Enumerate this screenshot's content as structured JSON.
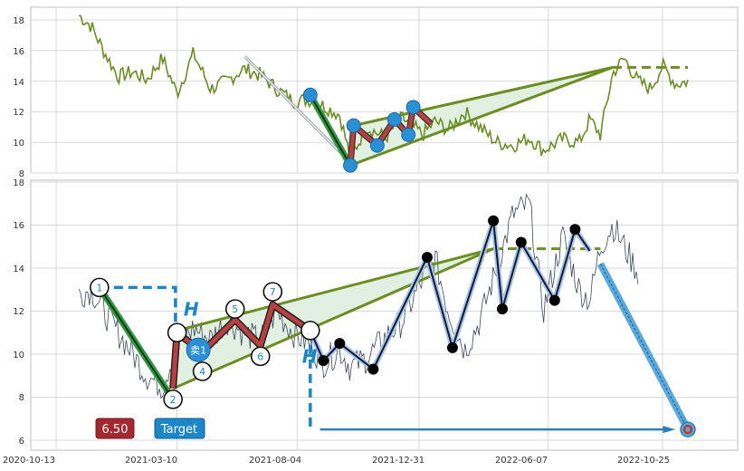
{
  "chart_data": [
    {
      "type": "line",
      "panel": "top",
      "ylim": [
        8,
        19
      ],
      "y_ticks": [
        "8",
        "10",
        "12",
        "14",
        "16",
        "18"
      ],
      "grid": true,
      "price_series": {
        "color": "#6b8e23",
        "x": [
          "2020-11-10",
          "2020-11-25",
          "2020-12-10",
          "2020-12-28",
          "2021-01-15",
          "2021-02-01",
          "2021-02-20",
          "2021-03-10",
          "2021-03-30",
          "2021-04-20",
          "2021-05-10",
          "2021-05-30",
          "2021-06-20",
          "2021-07-10",
          "2021-07-30",
          "2021-08-20",
          "2021-09-05",
          "2021-09-25",
          "2021-10-08",
          "2021-10-28",
          "2021-11-20",
          "2021-12-10",
          "2022-01-05",
          "2022-01-20",
          "2022-02-05",
          "2022-02-25",
          "2022-03-15",
          "2022-04-05",
          "2022-04-25",
          "2022-05-15",
          "2022-06-01",
          "2022-06-25",
          "2022-07-15",
          "2022-07-28",
          "2022-08-10",
          "2022-08-25",
          "2022-09-08",
          "2022-09-25",
          "2022-10-10",
          "2022-10-25",
          "2022-11-10",
          "2022-11-25"
        ],
        "y": [
          18.3,
          17.6,
          16.0,
          14.3,
          14.6,
          14.1,
          15.5,
          13.2,
          15.8,
          13.5,
          14.0,
          14.8,
          14.4,
          13.5,
          12.7,
          12.8,
          12.4,
          11.8,
          9.0,
          11.0,
          10.3,
          11.6,
          10.5,
          11.4,
          10.8,
          12.0,
          11.0,
          10.0,
          9.8,
          10.3,
          9.5,
          10.2,
          10.0,
          11.5,
          10.5,
          14.5,
          15.5,
          14.0,
          13.5,
          15.0,
          13.8,
          14.0
        ]
      },
      "sell_trend": {
        "x": [
          "2021-08-20",
          "2021-10-08"
        ],
        "y": [
          13.1,
          8.5
        ]
      },
      "arrow": {
        "x": [
          "2021-06-01",
          "2021-10-06"
        ],
        "y": [
          15.6,
          8.8
        ]
      },
      "pivots": {
        "x": [
          "2021-08-20",
          "2021-10-08",
          "2021-10-12",
          "2021-11-10",
          "2021-12-01",
          "2021-12-18",
          "2021-12-24"
        ],
        "y": [
          13.1,
          8.5,
          11.1,
          9.8,
          11.5,
          10.5,
          12.3
        ]
      },
      "pattern_path": {
        "x": [
          "2021-10-08",
          "2021-10-12",
          "2021-11-10",
          "2021-12-01",
          "2021-12-18",
          "2021-12-24",
          "2022-01-15"
        ],
        "y": [
          8.5,
          11.1,
          9.8,
          11.5,
          10.5,
          12.3,
          11.2
        ]
      },
      "wedge": {
        "apex": {
          "x": "2022-08-25",
          "y": 14.9
        },
        "upper_start": {
          "x": "2021-10-12",
          "y": 11.1
        },
        "lower_start": {
          "x": "2021-10-08",
          "y": 8.5
        }
      },
      "level": {
        "y": 14.9,
        "x": [
          "2022-08-25",
          "2022-11-25"
        ]
      }
    },
    {
      "type": "line",
      "panel": "bottom",
      "ylim": [
        5.5,
        18.1
      ],
      "y_ticks": [
        "6",
        "8",
        "10",
        "12",
        "14",
        "16",
        "18"
      ],
      "x_tick_labels": [
        "2020-10-13",
        "2021-03-10",
        "2021-08-04",
        "2021-12-31",
        "2022-06-07",
        "2022-10-25"
      ],
      "grid": true,
      "price_series": {
        "color": "#3b4660",
        "x": [
          "2020-11-10",
          "2020-11-25",
          "2020-12-10",
          "2020-12-28",
          "2021-01-15",
          "2021-02-01",
          "2021-02-20",
          "2021-03-10",
          "2021-03-30",
          "2021-04-20",
          "2021-05-10",
          "2021-05-30",
          "2021-06-20",
          "2021-07-10",
          "2021-07-30",
          "2021-08-20",
          "2021-09-05",
          "2021-09-25",
          "2021-10-08",
          "2021-10-28",
          "2021-11-20",
          "2021-12-10",
          "2022-01-05",
          "2022-01-20",
          "2022-02-05",
          "2022-02-25",
          "2022-03-15",
          "2022-04-05",
          "2022-04-25",
          "2022-05-15",
          "2022-06-01",
          "2022-06-25",
          "2022-07-15",
          "2022-07-28",
          "2022-08-10",
          "2022-08-25",
          "2022-09-08",
          "2022-09-25"
        ],
        "y": [
          12.8,
          13.0,
          12.0,
          11.0,
          10.0,
          9.0,
          8.5,
          10.5,
          11.2,
          10.7,
          11.6,
          11.0,
          10.6,
          12.0,
          11.0,
          10.4,
          9.6,
          10.2,
          9.4,
          9.8,
          10.8,
          11.5,
          13.5,
          14.4,
          12.0,
          10.2,
          11.5,
          14.0,
          16.5,
          17.0,
          12.0,
          15.5,
          13.0,
          12.5,
          15.0,
          16.0,
          15.0,
          13.8
        ]
      },
      "trend_left": {
        "x": [
          "2020-12-05",
          "2021-03-05"
        ],
        "y": [
          13.1,
          7.9
        ]
      },
      "pattern_points": [
        {
          "label": "1",
          "x": "2020-12-05",
          "y": 13.1,
          "circled": true
        },
        {
          "label": "2",
          "x": "2021-03-05",
          "y": 7.9,
          "circled": true
        },
        {
          "label": "",
          "x": "2021-03-10",
          "y": 11.0,
          "circled": true
        },
        {
          "label": "4",
          "x": "2021-04-10",
          "y": 9.2,
          "circled": true
        },
        {
          "label": "5",
          "x": "2021-05-20",
          "y": 12.1,
          "circled": true
        },
        {
          "label": "6",
          "x": "2021-06-20",
          "y": 9.9,
          "circled": true
        },
        {
          "label": "7",
          "x": "2021-07-05",
          "y": 12.9,
          "circled": true
        },
        {
          "label": "",
          "x": "2021-08-20",
          "y": 11.1,
          "circled": true
        }
      ],
      "pattern_path": {
        "x": [
          "2021-03-05",
          "2021-03-10",
          "2021-04-10",
          "2021-05-20",
          "2021-06-20",
          "2021-07-05",
          "2021-08-20"
        ],
        "y": [
          8.4,
          11.0,
          10.1,
          11.6,
          10.4,
          12.3,
          11.1
        ]
      },
      "swing_points": {
        "x": [
          "2021-08-20",
          "2021-09-05",
          "2021-09-25",
          "2021-11-05",
          "2022-01-10",
          "2022-02-10",
          "2022-04-01",
          "2022-04-12",
          "2022-05-05",
          "2022-06-15",
          "2022-07-10"
        ],
        "y": [
          11.1,
          9.7,
          10.5,
          9.3,
          14.5,
          10.3,
          16.2,
          12.1,
          15.2,
          12.5,
          15.8
        ]
      },
      "swing_path": {
        "x": [
          "2021-08-20",
          "2021-09-05",
          "2021-09-25",
          "2021-11-05",
          "2022-01-10",
          "2022-02-10",
          "2022-04-01",
          "2022-04-12",
          "2022-05-05",
          "2022-06-15",
          "2022-07-10",
          "2022-07-28"
        ],
        "y": [
          11.1,
          9.7,
          10.5,
          9.3,
          14.5,
          10.3,
          16.2,
          12.1,
          15.2,
          12.5,
          15.8,
          14.8
        ]
      },
      "wedge": {
        "apex": {
          "x": "2022-04-01",
          "y": 14.9
        },
        "upper_start": {
          "x": "2021-03-10",
          "y": 11.1
        },
        "lower_start": {
          "x": "2021-03-05",
          "y": 8.4
        }
      },
      "level": {
        "y": 14.9,
        "x": [
          "2022-04-01",
          "2022-08-10"
        ]
      },
      "bracket": {
        "x": [
          "2020-12-05",
          "2021-03-08"
        ],
        "y": 13.1
      },
      "vline": {
        "x": "2021-08-20",
        "y": [
          11.1,
          6.5
        ]
      },
      "target_arrow": {
        "x": [
          "2021-09-01",
          "2022-11-10"
        ],
        "y": 6.5
      },
      "drop_arrow": {
        "x": [
          "2022-08-10",
          "2022-11-25"
        ],
        "y": [
          14.2,
          6.5
        ]
      },
      "target_marker": {
        "x": "2022-11-25",
        "y": 6.5
      },
      "badges": {
        "value": "6.50",
        "target": "Target"
      },
      "annotations": {
        "sell_label": "卖1",
        "sell_point": {
          "x": "2021-04-05",
          "y": 10.2
        },
        "h_mark": "H"
      }
    }
  ]
}
